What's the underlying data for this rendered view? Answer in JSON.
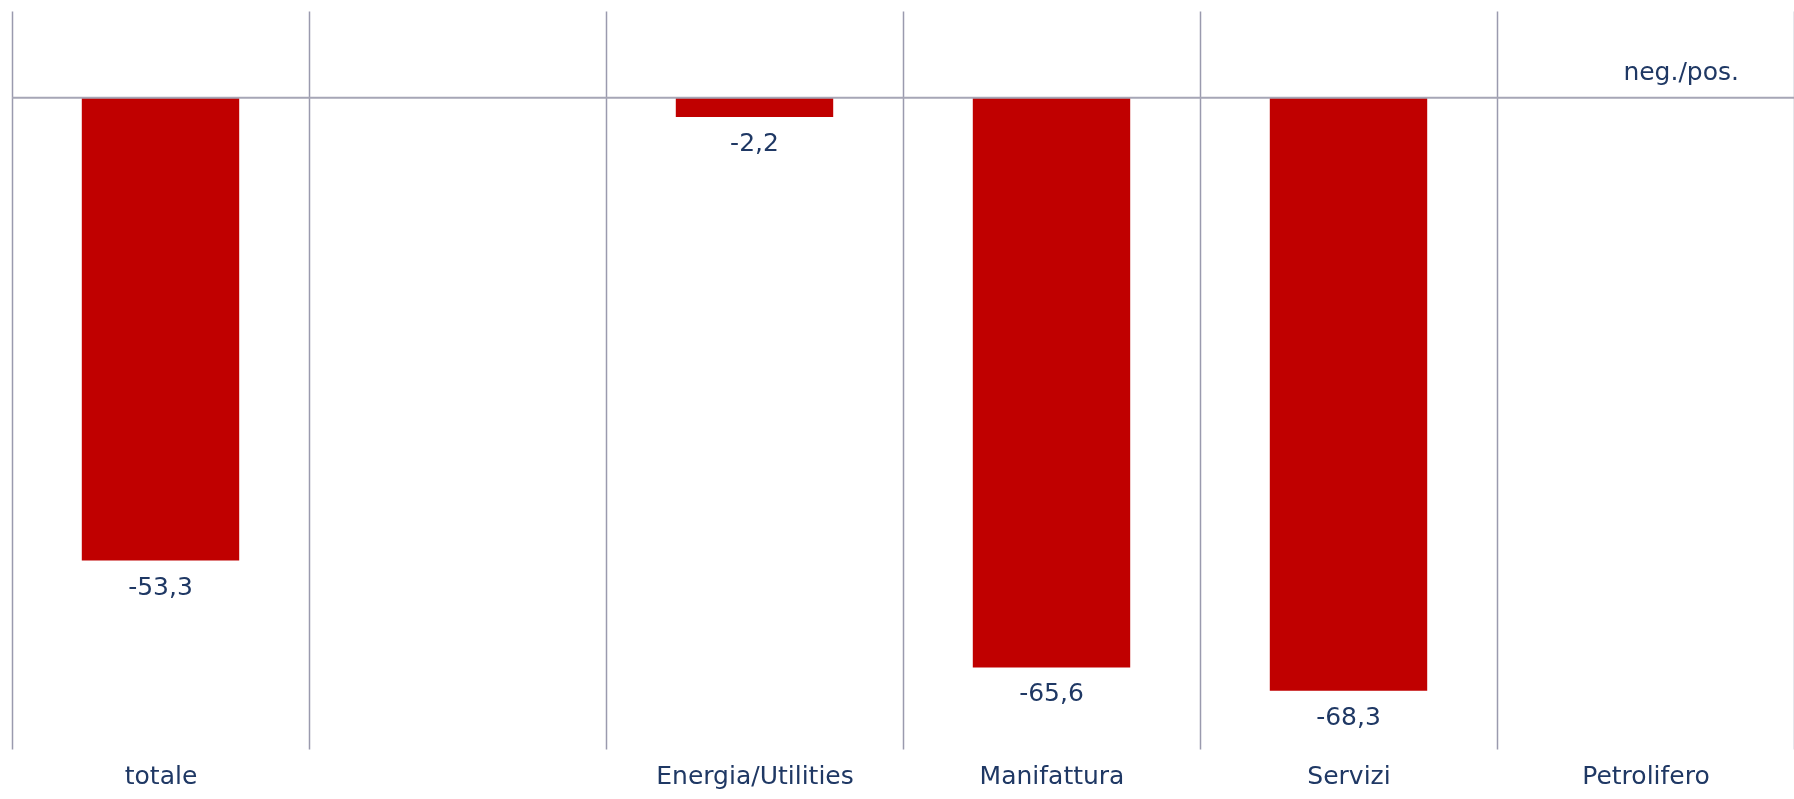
{
  "chart_data": {
    "type": "bar",
    "categories": [
      "totale",
      null,
      "Energia/Utilities",
      "Manifattura",
      "Servizi",
      "Petrolifero"
    ],
    "values": [
      -53.3,
      null,
      -2.2,
      -65.6,
      -68.3,
      null
    ],
    "value_labels": [
      "-53,3",
      null,
      "-2,2",
      "-65,6",
      "-68,3",
      null
    ],
    "color": "#c00000",
    "ylim": [
      -75,
      10
    ],
    "tick_labels": "x",
    "grid": "x",
    "ref_lines": [
      {
        "axis": "y",
        "value": 0,
        "color": "#a6a6b6"
      }
    ],
    "annotations": [
      "neg./pos."
    ]
  }
}
